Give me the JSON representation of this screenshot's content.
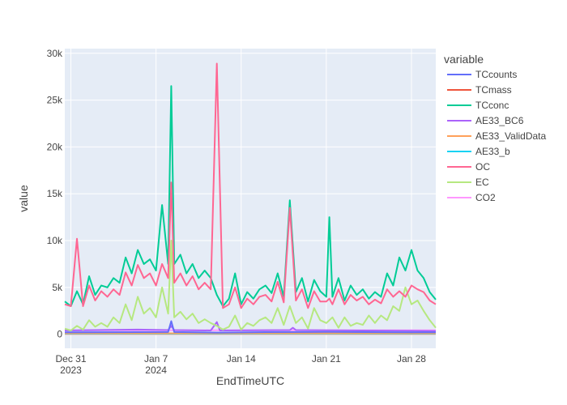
{
  "chart_data": {
    "type": "line",
    "xlabel": "EndTimeUTC",
    "ylabel": "value",
    "legend_title": "variable",
    "legend_position": "right",
    "grid": true,
    "x_range": [
      "2023-12-30T12:00",
      "2024-01-30T00:00"
    ],
    "ylim": [
      -1500,
      30500
    ],
    "x_ticks": [
      {
        "date": "2023-12-31",
        "line1": "Dec 31",
        "line2": "2023"
      },
      {
        "date": "2024-01-07",
        "line1": "Jan 7",
        "line2": "2024"
      },
      {
        "date": "2024-01-14",
        "line1": "Jan 14",
        "line2": ""
      },
      {
        "date": "2024-01-21",
        "line1": "Jan 21",
        "line2": ""
      },
      {
        "date": "2024-01-28",
        "line1": "Jan 28",
        "line2": ""
      }
    ],
    "y_ticks": [
      {
        "value": 0,
        "label": "0"
      },
      {
        "value": 5000,
        "label": "5k"
      },
      {
        "value": 10000,
        "label": "10k"
      },
      {
        "value": 15000,
        "label": "15k"
      },
      {
        "value": 20000,
        "label": "20k"
      },
      {
        "value": 25000,
        "label": "25k"
      },
      {
        "value": 30000,
        "label": "30k"
      }
    ],
    "series": [
      {
        "name": "TCcounts",
        "color": "#636efa",
        "x": [
          "2023-12-30T12:00",
          "2024-01-05T12:00",
          "2024-01-08T00:00",
          "2024-01-08T06:00",
          "2024-01-08T12:00",
          "2024-01-12T00:00",
          "2024-01-16T00:00",
          "2024-01-21T00:00",
          "2024-01-26T00:00",
          "2024-01-30T00:00"
        ],
        "values": [
          200,
          230,
          240,
          1400,
          240,
          180,
          230,
          250,
          220,
          200
        ]
      },
      {
        "name": "TCmass",
        "color": "#EF553B",
        "x": [
          "2023-12-30T12:00",
          "2024-01-30T00:00"
        ],
        "values": [
          30,
          30
        ]
      },
      {
        "name": "TCconc",
        "color": "#00cc96",
        "x": [
          "2023-12-30T12:00",
          "2023-12-31T00:00",
          "2023-12-31T12:00",
          "2024-01-01T00:00",
          "2024-01-01T12:00",
          "2024-01-02T00:00",
          "2024-01-02T12:00",
          "2024-01-03T00:00",
          "2024-01-03T12:00",
          "2024-01-04T00:00",
          "2024-01-04T12:00",
          "2024-01-05T00:00",
          "2024-01-05T12:00",
          "2024-01-06T00:00",
          "2024-01-06T12:00",
          "2024-01-07T00:00",
          "2024-01-07T12:00",
          "2024-01-08T00:00",
          "2024-01-08T06:00",
          "2024-01-08T12:00",
          "2024-01-09T00:00",
          "2024-01-09T12:00",
          "2024-01-10T00:00",
          "2024-01-10T12:00",
          "2024-01-11T00:00",
          "2024-01-11T12:00",
          "2024-01-12T00:00",
          "2024-01-12T12:00",
          "2024-01-13T00:00",
          "2024-01-13T12:00",
          "2024-01-14T00:00",
          "2024-01-14T12:00",
          "2024-01-15T00:00",
          "2024-01-15T12:00",
          "2024-01-16T00:00",
          "2024-01-16T12:00",
          "2024-01-17T00:00",
          "2024-01-17T12:00",
          "2024-01-18T00:00",
          "2024-01-18T12:00",
          "2024-01-19T00:00",
          "2024-01-19T12:00",
          "2024-01-20T00:00",
          "2024-01-20T12:00",
          "2024-01-21T00:00",
          "2024-01-21T06:00",
          "2024-01-21T12:00",
          "2024-01-22T00:00",
          "2024-01-22T12:00",
          "2024-01-23T00:00",
          "2024-01-23T12:00",
          "2024-01-24T00:00",
          "2024-01-24T12:00",
          "2024-01-25T00:00",
          "2024-01-25T12:00",
          "2024-01-26T00:00",
          "2024-01-26T12:00",
          "2024-01-27T00:00",
          "2024-01-27T12:00",
          "2024-01-28T00:00",
          "2024-01-28T12:00",
          "2024-01-29T00:00",
          "2024-01-29T12:00",
          "2024-01-30T00:00"
        ],
        "values": [
          3500,
          3000,
          4600,
          3200,
          6200,
          4200,
          5200,
          5000,
          6000,
          5500,
          8200,
          6500,
          9000,
          7500,
          8000,
          6800,
          13800,
          7500,
          26500,
          7500,
          8500,
          6500,
          7500,
          6000,
          6800,
          6000,
          4200,
          3000,
          3800,
          6500,
          3200,
          4500,
          3800,
          4800,
          5200,
          4400,
          6500,
          4000,
          14300,
          4500,
          6000,
          3500,
          5800,
          4600,
          4000,
          12500,
          4000,
          6000,
          3600,
          5200,
          4200,
          4800,
          3800,
          4500,
          4000,
          6500,
          5200,
          8200,
          6800,
          9000,
          6800,
          6000,
          4500,
          3700
        ]
      },
      {
        "name": "AE33_BC6",
        "color": "#ab63fa",
        "x": [
          "2023-12-30T12:00",
          "2024-01-05T12:00",
          "2024-01-08T00:00",
          "2024-01-08T06:00",
          "2024-01-08T12:00",
          "2024-01-11T12:00",
          "2024-01-12T00:00",
          "2024-01-12T06:00",
          "2024-01-18T00:00",
          "2024-01-18T06:00",
          "2024-01-18T12:00",
          "2024-01-24T00:00",
          "2024-01-30T00:00"
        ],
        "values": [
          400,
          500,
          450,
          900,
          450,
          400,
          1300,
          400,
          450,
          700,
          450,
          400,
          350
        ]
      },
      {
        "name": "AE33_ValidData",
        "color": "#FFA15A",
        "x": [
          "2023-12-30T12:00",
          "2024-01-30T00:00"
        ],
        "values": [
          100,
          100
        ]
      },
      {
        "name": "AE33_b",
        "color": "#19d3f3",
        "x": [
          "2023-12-30T12:00",
          "2024-01-30T00:00"
        ],
        "values": [
          60,
          60
        ]
      },
      {
        "name": "OC",
        "color": "#FF6692",
        "x": [
          "2023-12-30T12:00",
          "2023-12-31T00:00",
          "2023-12-31T12:00",
          "2024-01-01T00:00",
          "2024-01-01T12:00",
          "2024-01-02T00:00",
          "2024-01-02T12:00",
          "2024-01-03T00:00",
          "2024-01-03T12:00",
          "2024-01-04T00:00",
          "2024-01-04T12:00",
          "2024-01-05T00:00",
          "2024-01-05T12:00",
          "2024-01-06T00:00",
          "2024-01-06T12:00",
          "2024-01-07T00:00",
          "2024-01-07T12:00",
          "2024-01-08T00:00",
          "2024-01-08T06:00",
          "2024-01-08T12:00",
          "2024-01-09T00:00",
          "2024-01-09T12:00",
          "2024-01-10T00:00",
          "2024-01-10T12:00",
          "2024-01-11T00:00",
          "2024-01-11T12:00",
          "2024-01-12T00:00",
          "2024-01-12T12:00",
          "2024-01-13T00:00",
          "2024-01-13T12:00",
          "2024-01-14T00:00",
          "2024-01-14T12:00",
          "2024-01-15T00:00",
          "2024-01-15T12:00",
          "2024-01-16T00:00",
          "2024-01-16T12:00",
          "2024-01-17T00:00",
          "2024-01-17T12:00",
          "2024-01-18T00:00",
          "2024-01-18T12:00",
          "2024-01-19T00:00",
          "2024-01-19T12:00",
          "2024-01-20T00:00",
          "2024-01-20T12:00",
          "2024-01-21T00:00",
          "2024-01-21T06:00",
          "2024-01-21T12:00",
          "2024-01-22T00:00",
          "2024-01-22T12:00",
          "2024-01-23T00:00",
          "2024-01-23T12:00",
          "2024-01-24T00:00",
          "2024-01-24T12:00",
          "2024-01-25T00:00",
          "2024-01-25T12:00",
          "2024-01-26T00:00",
          "2024-01-26T12:00",
          "2024-01-27T00:00",
          "2024-01-27T12:00",
          "2024-01-28T00:00",
          "2024-01-28T12:00",
          "2024-01-29T00:00",
          "2024-01-29T12:00",
          "2024-01-30T00:00"
        ],
        "values": [
          3200,
          3000,
          10200,
          3000,
          5200,
          3600,
          4600,
          4000,
          4800,
          4200,
          6600,
          5200,
          7400,
          6000,
          6500,
          5200,
          7500,
          6000,
          16200,
          5500,
          6500,
          5200,
          6200,
          4800,
          5500,
          4800,
          28900,
          2800,
          3200,
          5000,
          2800,
          3800,
          3200,
          4000,
          4200,
          3500,
          5600,
          3400,
          13500,
          3600,
          4800,
          2800,
          4600,
          3500,
          3500,
          3800,
          3200,
          4800,
          3200,
          4200,
          3600,
          4000,
          3200,
          3700,
          3300,
          4800,
          4000,
          4600,
          4000,
          5200,
          4800,
          4500,
          3600,
          3200
        ]
      },
      {
        "name": "EC",
        "color": "#B6E880",
        "x": [
          "2023-12-30T12:00",
          "2023-12-31T00:00",
          "2023-12-31T12:00",
          "2024-01-01T00:00",
          "2024-01-01T12:00",
          "2024-01-02T00:00",
          "2024-01-02T12:00",
          "2024-01-03T00:00",
          "2024-01-03T12:00",
          "2024-01-04T00:00",
          "2024-01-04T12:00",
          "2024-01-05T00:00",
          "2024-01-05T12:00",
          "2024-01-06T00:00",
          "2024-01-06T12:00",
          "2024-01-07T00:00",
          "2024-01-07T12:00",
          "2024-01-08T00:00",
          "2024-01-08T06:00",
          "2024-01-08T12:00",
          "2024-01-09T00:00",
          "2024-01-09T12:00",
          "2024-01-10T00:00",
          "2024-01-10T12:00",
          "2024-01-11T00:00",
          "2024-01-11T12:00",
          "2024-01-12T00:00",
          "2024-01-12T12:00",
          "2024-01-13T00:00",
          "2024-01-13T12:00",
          "2024-01-14T00:00",
          "2024-01-14T12:00",
          "2024-01-15T00:00",
          "2024-01-15T12:00",
          "2024-01-16T00:00",
          "2024-01-16T12:00",
          "2024-01-17T00:00",
          "2024-01-17T12:00",
          "2024-01-18T00:00",
          "2024-01-18T12:00",
          "2024-01-19T00:00",
          "2024-01-19T12:00",
          "2024-01-20T00:00",
          "2024-01-20T12:00",
          "2024-01-21T00:00",
          "2024-01-21T12:00",
          "2024-01-22T00:00",
          "2024-01-22T12:00",
          "2024-01-23T00:00",
          "2024-01-23T12:00",
          "2024-01-24T00:00",
          "2024-01-24T12:00",
          "2024-01-25T00:00",
          "2024-01-25T12:00",
          "2024-01-26T00:00",
          "2024-01-26T12:00",
          "2024-01-27T00:00",
          "2024-01-27T12:00",
          "2024-01-28T00:00",
          "2024-01-28T12:00",
          "2024-01-29T00:00",
          "2024-01-29T12:00",
          "2024-01-30T00:00"
        ],
        "values": [
          600,
          400,
          900,
          500,
          1500,
          800,
          1200,
          800,
          1800,
          1200,
          3200,
          1500,
          4000,
          2200,
          2800,
          1800,
          5000,
          2200,
          10000,
          1800,
          2400,
          1600,
          2200,
          1200,
          1600,
          1200,
          900,
          500,
          800,
          2000,
          500,
          1200,
          900,
          1500,
          1800,
          1200,
          2800,
          1000,
          3000,
          1200,
          1800,
          600,
          2800,
          1500,
          1200,
          1800,
          700,
          1800,
          900,
          1200,
          1000,
          2000,
          1200,
          2000,
          1500,
          3000,
          2500,
          5000,
          3200,
          3600,
          2500,
          1500,
          700
        ]
      },
      {
        "name": "CO2",
        "color": "#FF97FF",
        "x": [
          "2023-12-30T12:00",
          "2024-01-30T00:00"
        ],
        "values": [
          420,
          420
        ]
      }
    ]
  }
}
